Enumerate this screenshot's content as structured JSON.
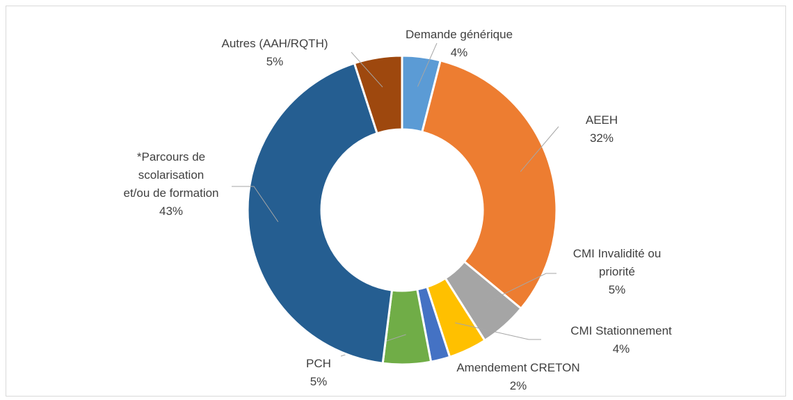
{
  "chart_data": {
    "type": "donut",
    "categories": [
      "Demande générique",
      "AEEH",
      "CMI Invalidité ou\npriorité",
      "CMI Stationnement",
      "Amendement CRETON",
      "PCH",
      "*Parcours de\nscolarisation\net/ou de formation",
      "Autres (AAH/RQTH)"
    ],
    "values": [
      4,
      32,
      5,
      4,
      2,
      5,
      43,
      5
    ],
    "value_labels": [
      "4%",
      "32%",
      "5%",
      "4%",
      "2%",
      "5%",
      "43%",
      "5%"
    ],
    "colors": [
      "#5b9bd5",
      "#ed7d31",
      "#a5a5a5",
      "#ffc000",
      "#4472c4",
      "#70ad47",
      "#255e91",
      "#9e480e"
    ]
  }
}
